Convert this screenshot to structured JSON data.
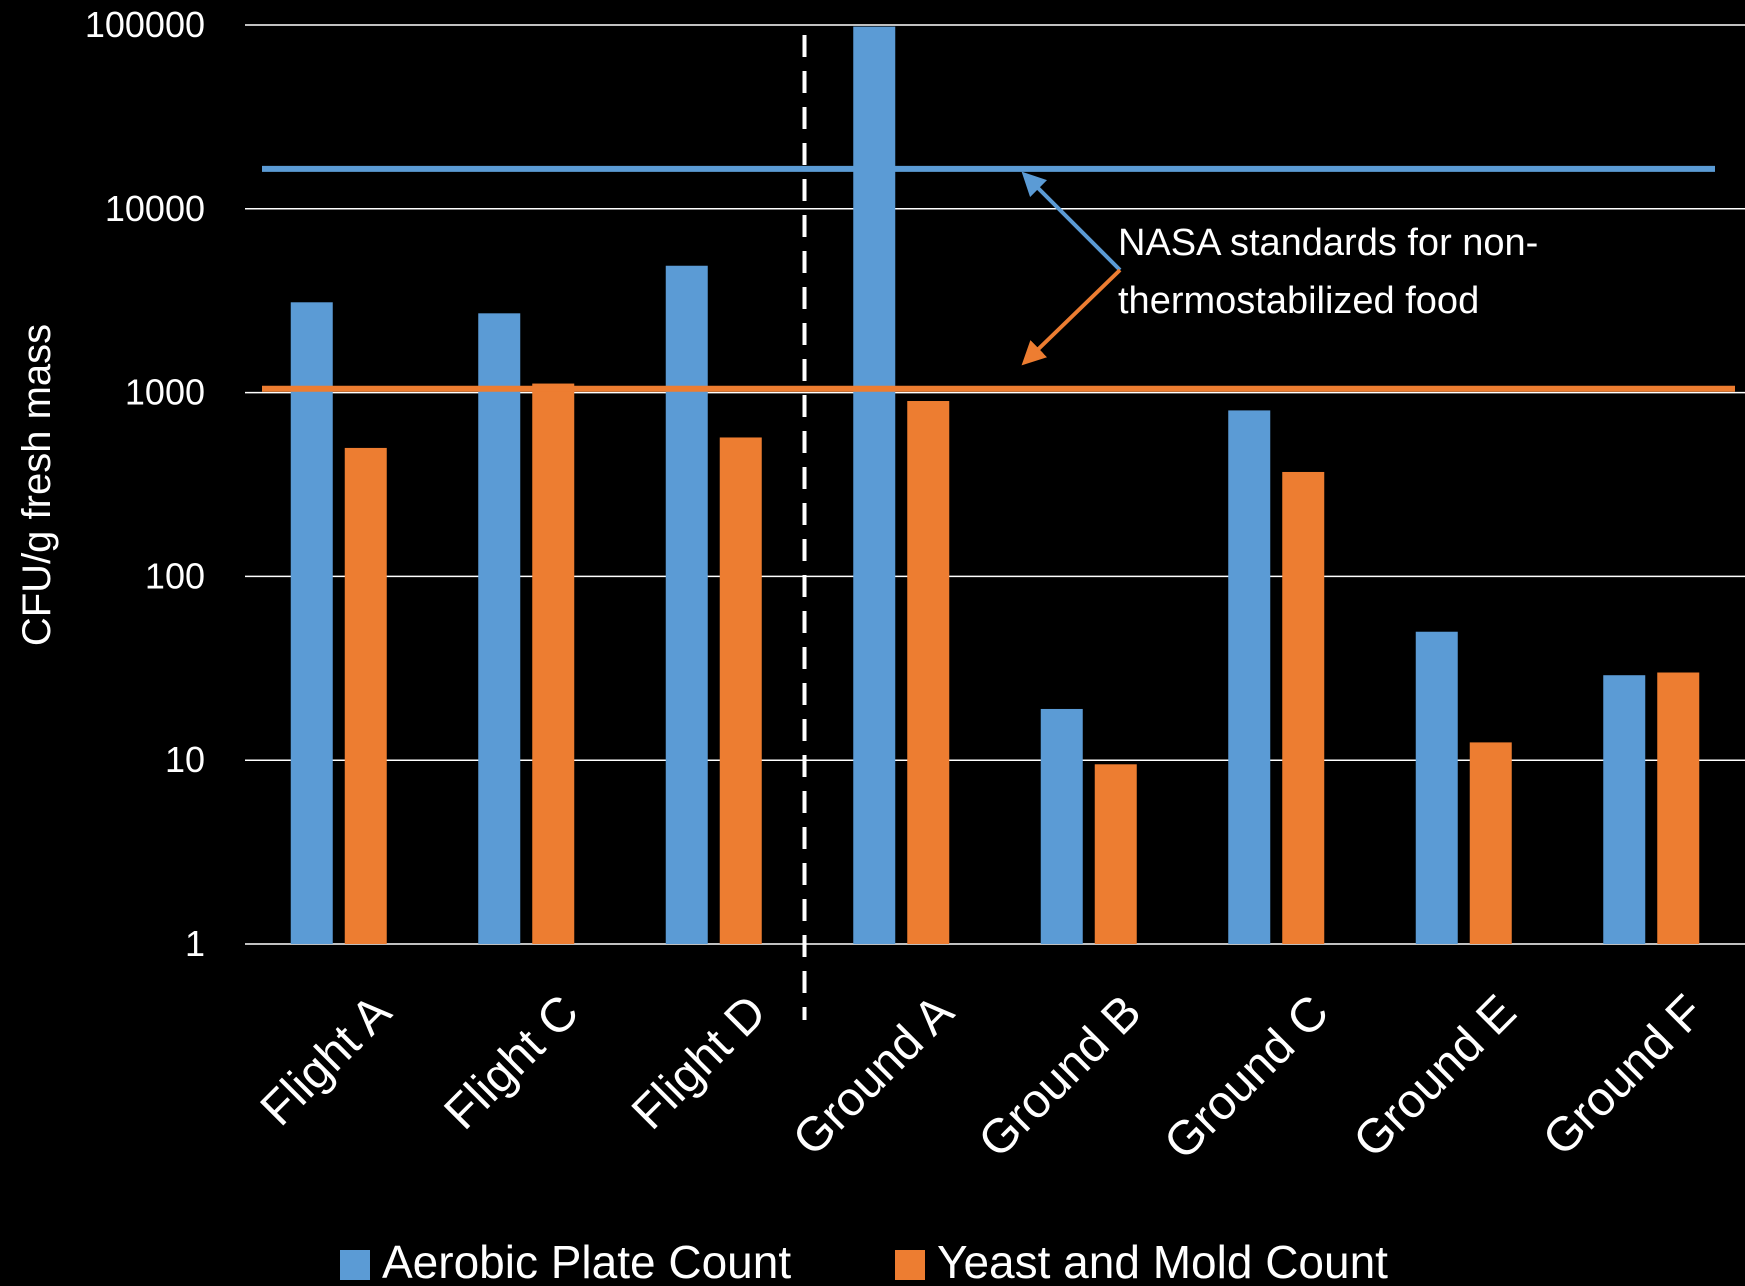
{
  "chart_data": {
    "type": "bar",
    "ylabel": "CFU/g fresh mass",
    "yscale": "log",
    "ylim": [
      1,
      100000
    ],
    "yticks": [
      "1",
      "10",
      "100",
      "1000",
      "10000",
      "100000"
    ],
    "grid": true,
    "legend_position": "bottom",
    "categories": [
      "Flight A",
      "Flight C",
      "Flight D",
      "Ground A",
      "Ground B",
      "Ground C",
      "Ground E",
      "Ground F"
    ],
    "series": [
      {
        "name": "Aerobic Plate Count",
        "color": "#5b9bd5",
        "values": [
          3100,
          2700,
          4900,
          98000,
          19,
          800,
          50,
          29
        ]
      },
      {
        "name": "Yeast and Mold Count",
        "color": "#ed7d31",
        "values": [
          500,
          1120,
          570,
          900,
          9.5,
          370,
          12.5,
          30
        ]
      }
    ],
    "reference_lines": [
      {
        "series": "Aerobic Plate Count",
        "value": 16500,
        "color": "#5b9bd5"
      },
      {
        "series": "Yeast and Mold Count",
        "value": 1050,
        "color": "#ed7d31"
      }
    ],
    "annotation": {
      "lines": [
        "NASA standards for non-",
        "thermostabilized food"
      ]
    },
    "divider_after_category": "Flight D"
  }
}
